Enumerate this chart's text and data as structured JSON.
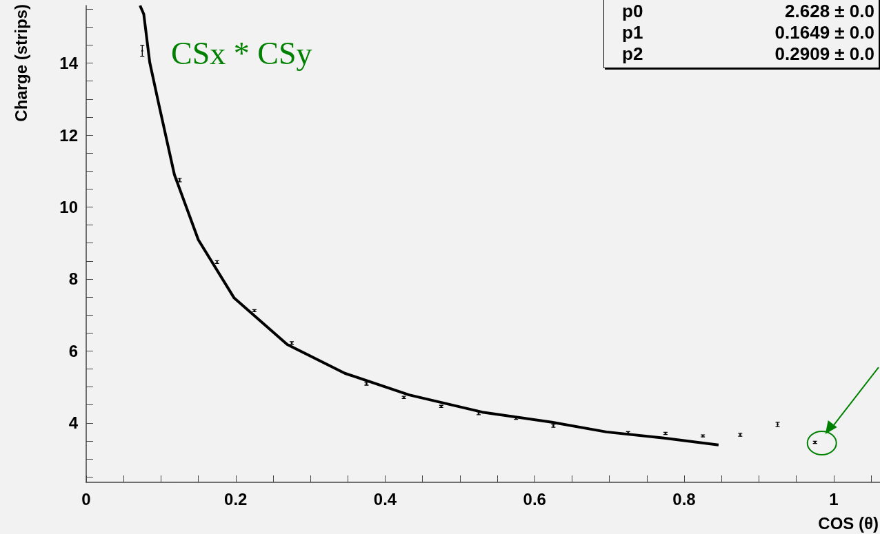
{
  "chart_data": {
    "type": "scatter",
    "xlabel": "COS (θ)",
    "ylabel": "Charge (strips)",
    "xlim": [
      0,
      1.062
    ],
    "ylim": [
      2.35,
      15.6
    ],
    "xticks": [
      0,
      {
        "value": 0.05,
        "label": null
      },
      {
        "value": 0.1,
        "label": null
      },
      {
        "value": 0.15,
        "label": null
      },
      0.2,
      {
        "value": 0.25,
        "label": null
      },
      {
        "value": 0.3,
        "label": null
      },
      {
        "value": 0.35,
        "label": null
      },
      0.4,
      {
        "value": 0.45,
        "label": null
      },
      {
        "value": 0.5,
        "label": null
      },
      {
        "value": 0.55,
        "label": null
      },
      0.6,
      {
        "value": 0.65,
        "label": null
      },
      {
        "value": 0.7,
        "label": null
      },
      {
        "value": 0.75,
        "label": null
      },
      0.8,
      {
        "value": 0.85,
        "label": null
      },
      {
        "value": 0.9,
        "label": null
      },
      {
        "value": 0.95,
        "label": null
      },
      1,
      {
        "value": 1.05,
        "label": null
      }
    ],
    "yticks": [
      {
        "value": 2.5,
        "label": null
      },
      {
        "value": 3,
        "label": null
      },
      {
        "value": 3.5,
        "label": null
      },
      4,
      {
        "value": 4.5,
        "label": null
      },
      {
        "value": 5,
        "label": null
      },
      {
        "value": 5.5,
        "label": null
      },
      6,
      {
        "value": 6.5,
        "label": null
      },
      {
        "value": 7,
        "label": null
      },
      {
        "value": 7.5,
        "label": null
      },
      8,
      {
        "value": 8.5,
        "label": null
      },
      {
        "value": 9,
        "label": null
      },
      {
        "value": 9.5,
        "label": null
      },
      10,
      {
        "value": 10.5,
        "label": null
      },
      {
        "value": 11,
        "label": null
      },
      {
        "value": 11.5,
        "label": null
      },
      12,
      {
        "value": 12.5,
        "label": null
      },
      {
        "value": 13,
        "label": null
      },
      {
        "value": 13.5,
        "label": null
      },
      14,
      {
        "value": 14.5,
        "label": null
      },
      {
        "value": 15,
        "label": null
      },
      {
        "value": 15.5,
        "label": null
      }
    ],
    "grid": false,
    "series": [
      {
        "color": "#000000",
        "x": [
          0.075,
          0.125,
          0.175,
          0.225,
          0.275,
          0.375,
          0.425,
          0.475,
          0.525,
          0.575,
          0.625,
          0.725,
          0.775,
          0.825,
          0.875,
          0.925,
          0.975
        ],
        "values": [
          14.34,
          10.75,
          8.47,
          7.12,
          6.22,
          5.09,
          4.71,
          4.46,
          4.27,
          4.13,
          3.92,
          3.73,
          3.71,
          3.64,
          3.67,
          3.96,
          3.46
        ],
        "errors": [
          0.15,
          0.05,
          0.04,
          0.03,
          0.04,
          0.04,
          0.03,
          0.03,
          0.04,
          0.03,
          0.04,
          0.03,
          0.03,
          0.03,
          0.04,
          0.06,
          0.03
        ]
      },
      {
        "type": "line",
        "color": "#000000",
        "x": [
          0.072,
          0.077,
          0.085,
          0.097,
          0.118,
          0.15,
          0.198,
          0.269,
          0.346,
          0.432,
          0.53,
          0.623,
          0.696,
          0.773,
          0.846
        ],
        "values": [
          15.6,
          15.36,
          14.02,
          12.87,
          10.9,
          9.09,
          7.47,
          6.18,
          5.38,
          4.78,
          4.3,
          4.02,
          3.75,
          3.58,
          3.39
        ]
      }
    ],
    "annotations": [
      "CSx * CSy",
      "p0",
      "2.628 ± 0.0",
      "p1",
      "0.1649 ± 0.0",
      "p2",
      "0.2909 ± 0.0"
    ]
  }
}
